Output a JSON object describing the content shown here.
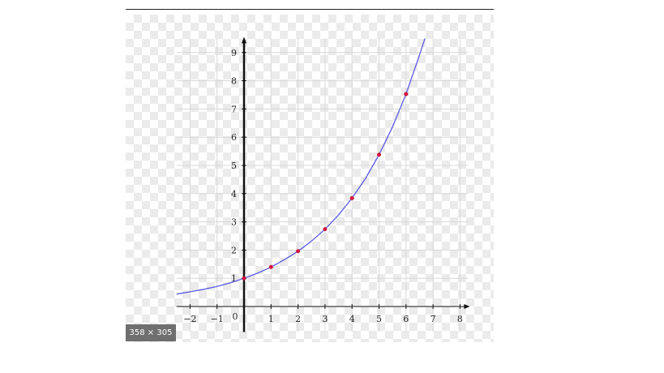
{
  "image_size_label": "358 × 305",
  "colors": {
    "curve": "#5a5ae6",
    "points": "#d0143c",
    "axis": "#111111",
    "grid": "#d8d8d8",
    "badge_bg": "#6f6f6f"
  },
  "chart_data": {
    "type": "line",
    "title": "",
    "xlabel": "",
    "ylabel": "",
    "xlim": [
      -2.5,
      8.3
    ],
    "ylim": [
      -0.9,
      9.5
    ],
    "grid": true,
    "x_ticks": [
      -2,
      -1,
      1,
      2,
      3,
      4,
      5,
      6,
      7,
      8
    ],
    "y_ticks": [
      1,
      2,
      3,
      4,
      5,
      6,
      7,
      8,
      9
    ],
    "x_tick_labels": [
      "−2",
      "−1",
      "1",
      "2",
      "3",
      "4",
      "5",
      "6",
      "7",
      "8"
    ],
    "y_tick_labels": [
      "1",
      "2",
      "3",
      "4",
      "5",
      "6",
      "7",
      "8",
      "9"
    ],
    "origin_label": "0",
    "series": [
      {
        "style": "curve",
        "x": [
          -2.5,
          -2,
          -1.5,
          -1,
          -0.5,
          0,
          0.5,
          1,
          1.5,
          2,
          2.5,
          3,
          3.5,
          4,
          4.5,
          5,
          5.5,
          6,
          6.5,
          6.7
        ],
        "y": [
          0.44,
          0.52,
          0.61,
          0.71,
          0.84,
          1.0,
          1.18,
          1.4,
          1.66,
          1.96,
          2.32,
          2.74,
          3.24,
          3.84,
          4.54,
          5.38,
          6.36,
          7.53,
          8.91,
          9.5
        ]
      },
      {
        "style": "points",
        "x": [
          0,
          1,
          2,
          3,
          4,
          5,
          6
        ],
        "y": [
          1.0,
          1.4,
          1.96,
          2.74,
          3.84,
          5.38,
          7.53
        ]
      }
    ]
  }
}
